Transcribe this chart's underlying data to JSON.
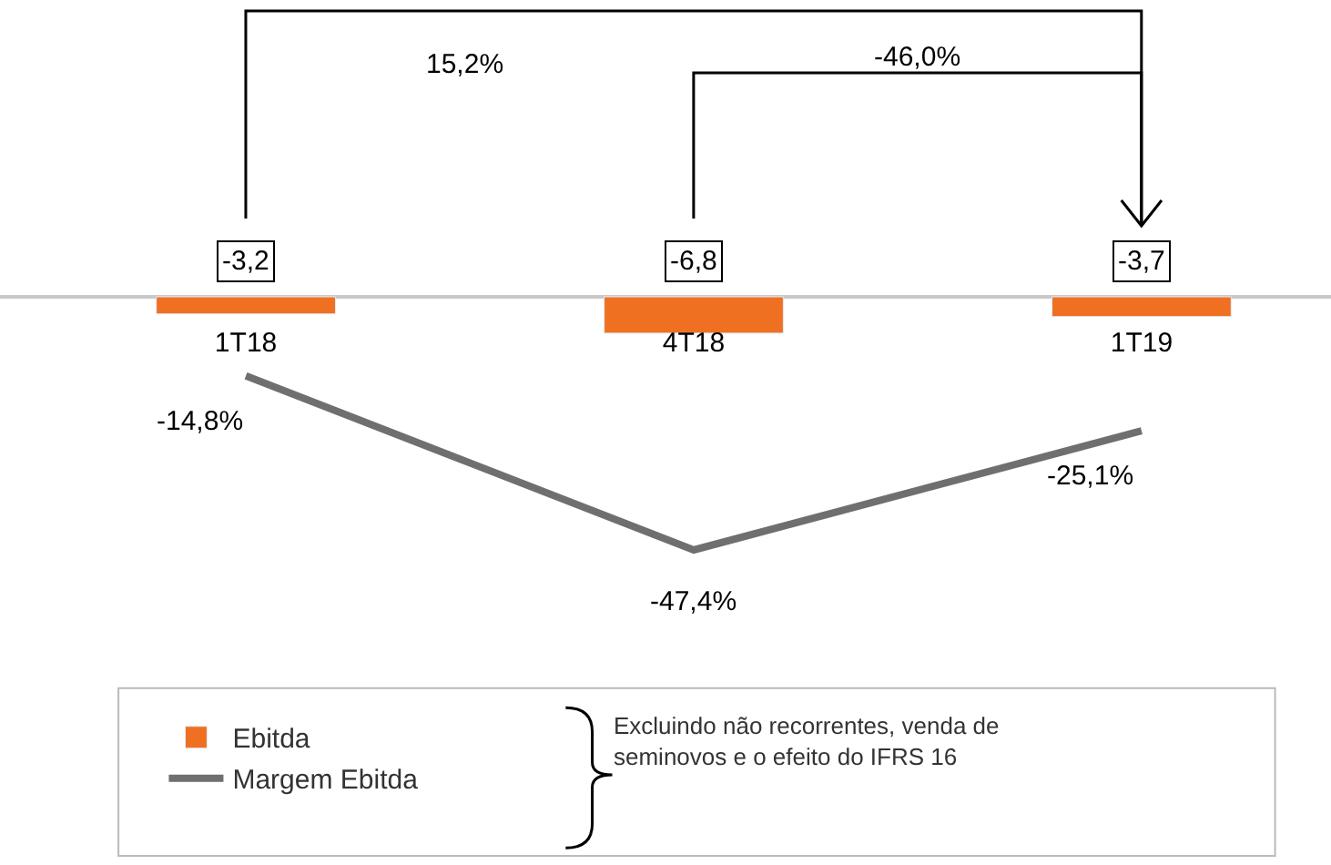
{
  "chart_data": {
    "type": "bar",
    "categories": [
      "1T18",
      "4T18",
      "1T19"
    ],
    "series": [
      {
        "name": "Ebitda",
        "color": "#f07022",
        "values": [
          -3.2,
          -6.8,
          -3.7
        ],
        "value_labels": [
          "-3,2",
          "-6,8",
          "-3,7"
        ]
      },
      {
        "name": "Margem Ebitda",
        "type": "line",
        "color": "#6f6f6f",
        "values": [
          -14.8,
          -47.4,
          -25.1
        ],
        "value_labels": [
          "-14,8%",
          "-47,4%",
          "-25,1%"
        ]
      }
    ],
    "tick_labels": "x",
    "legend": "bottom",
    "marker": "none",
    "line_style": "solid",
    "annotations": [
      "15,2%",
      "-46,0%",
      "Excluindo não recorrentes, venda de seminovos e o efeito do IFRS 16"
    ]
  }
}
